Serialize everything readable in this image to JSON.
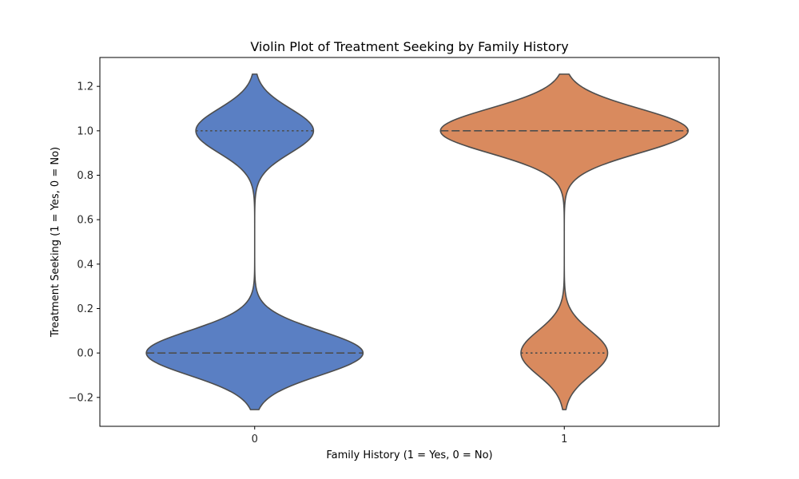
{
  "chart_data": {
    "type": "violin",
    "title": "Violin Plot of Treatment Seeking by Family History",
    "xlabel": "Family History (1 = Yes, 0 = No)",
    "ylabel": "Treatment Seeking (1 = Yes, 0 = No)",
    "categories": [
      "0",
      "1"
    ],
    "ylim": [
      -0.33,
      1.33
    ],
    "yticks": [
      -0.2,
      0.0,
      0.2,
      0.4,
      0.6,
      0.8,
      1.0,
      1.2
    ],
    "ytick_labels": [
      "−0.2",
      "0.0",
      "0.2",
      "0.4",
      "0.6",
      "0.8",
      "1.0",
      "1.2"
    ],
    "grid": false,
    "legend": "none",
    "inner": "quartile",
    "violins": [
      {
        "category": "0",
        "color": "#5a7fc3",
        "clip": [
          -0.255,
          1.255
        ],
        "modes": [
          {
            "center": 0.0,
            "peak_halfwidth": 0.35
          },
          {
            "center": 1.0,
            "peak_halfwidth": 0.19
          }
        ],
        "median": 0.0,
        "quartiles": [
          0.0,
          1.0
        ]
      },
      {
        "category": "1",
        "color": "#d98a5e",
        "clip": [
          -0.255,
          1.255
        ],
        "modes": [
          {
            "center": 1.0,
            "peak_halfwidth": 0.4
          },
          {
            "center": 0.0,
            "peak_halfwidth": 0.14
          }
        ],
        "median": 1.0,
        "quartiles": [
          0.0,
          1.0
        ]
      }
    ],
    "edge_color": "#4d4d4d"
  }
}
